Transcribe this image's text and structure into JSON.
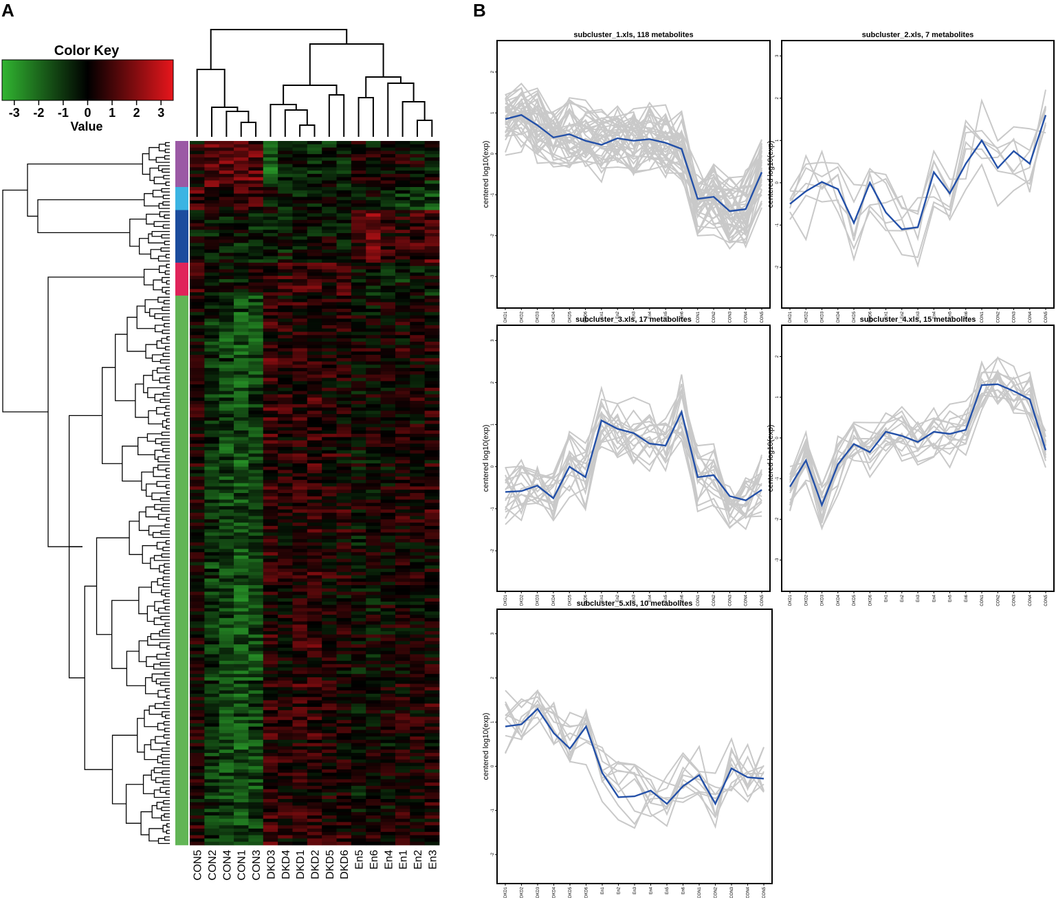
{
  "panel_labels": {
    "a": "A",
    "b": "B"
  },
  "chart_data": [
    {
      "type": "heatmap",
      "panel": "A",
      "color_key": {
        "title": "Color Key",
        "label": "Value",
        "ticks": [
          "-3",
          "-2",
          "-1",
          "0",
          "1",
          "2",
          "3"
        ],
        "range": [
          -3.5,
          3.5
        ],
        "low_color": "#31b531",
        "mid_color": "#000000",
        "high_color": "#e8161c"
      },
      "columns": [
        "CON5",
        "CON2",
        "CON4",
        "CON1",
        "CON3",
        "DKD3",
        "DKD4",
        "DKD1",
        "DKD2",
        "DKD5",
        "DKD6",
        "En5",
        "En6",
        "En4",
        "En1",
        "En2",
        "En3"
      ],
      "row_clusters": [
        {
          "color": "#9b59a5",
          "rows": 14
        },
        {
          "color": "#3bb4e3",
          "rows": 7
        },
        {
          "color": "#1c4c9e",
          "rows": 16
        },
        {
          "color": "#e0245a",
          "rows": 10
        },
        {
          "color": "#62b556",
          "rows": 167
        }
      ],
      "cluster_means": [
        [
          0.4,
          1.3,
          1.3,
          1.2,
          1.3,
          -1.8,
          -0.6,
          -0.9,
          -0.6,
          -0.4,
          -0.7,
          0.3,
          0.0,
          0.2,
          0.2,
          -0.2,
          -0.4
        ],
        [
          1.1,
          0.6,
          0.4,
          0.8,
          0.9,
          -0.3,
          -0.4,
          -0.6,
          -0.3,
          -0.4,
          -0.2,
          -0.3,
          -0.1,
          -1.0,
          -0.9,
          -1.2,
          -1.3
        ],
        [
          -0.2,
          -0.5,
          -0.5,
          -0.6,
          -0.8,
          -0.6,
          -0.5,
          -0.3,
          -0.5,
          -0.2,
          -0.4,
          0.3,
          1.6,
          0.6,
          0.4,
          0.8,
          0.9
        ],
        [
          0.5,
          -0.3,
          -0.2,
          -0.3,
          -0.1,
          0.6,
          0.6,
          0.8,
          0.9,
          0.6,
          1.1,
          -0.3,
          -0.3,
          -0.4,
          -0.3,
          -0.3,
          -0.4
        ],
        [
          0.2,
          -0.9,
          -1.3,
          -1.5,
          -1.3,
          0.7,
          0.4,
          0.6,
          0.7,
          0.4,
          0.3,
          -0.1,
          0.0,
          0.1,
          0.3,
          0.3,
          0.4
        ]
      ]
    },
    {
      "type": "line",
      "panel": "B",
      "title": "subcluster_1.xls, 118 metabolites",
      "ylabel": "centered log10(exp)",
      "x": [
        "DKD1",
        "DKD2",
        "DKD3",
        "DKD4",
        "DKD5",
        "DKD6",
        "En1",
        "En2",
        "En3",
        "En4",
        "En5",
        "En6",
        "CON1",
        "CON2",
        "CON3",
        "CON4",
        "CON5"
      ],
      "yticks": [
        "2",
        "1",
        "0",
        "-1",
        "-2",
        "-3"
      ],
      "ylim": [
        -3.6,
        2.6
      ],
      "mean": [
        0.85,
        0.95,
        0.7,
        0.4,
        0.48,
        0.32,
        0.22,
        0.38,
        0.32,
        0.36,
        0.27,
        0.12,
        -1.1,
        -1.05,
        -1.4,
        -1.35,
        -0.45
      ],
      "spread": 0.5,
      "n_lines": 40
    },
    {
      "type": "line",
      "panel": "B",
      "title": "subcluster_2.xls, 7 metabolites",
      "ylabel": "centered log10(exp)",
      "x": [
        "DKD1",
        "DKD2",
        "DKD3",
        "DKD4",
        "DKD5",
        "DKD6",
        "En1",
        "En2",
        "En3",
        "En4",
        "En5",
        "En6",
        "CON1",
        "CON2",
        "CON3",
        "CON4",
        "CON5"
      ],
      "yticks": [
        "3",
        "2",
        "1",
        "0",
        "-1",
        "-2"
      ],
      "ylim": [
        -2.8,
        3.2
      ],
      "mean": [
        -0.5,
        -0.2,
        0.02,
        -0.15,
        -0.95,
        0.0,
        -0.7,
        -1.1,
        -1.05,
        0.25,
        -0.25,
        0.45,
        1.0,
        0.35,
        0.75,
        0.45,
        1.6
      ],
      "spread": 0.6,
      "n_lines": 7
    },
    {
      "type": "line",
      "panel": "B",
      "title": "subcluster_3.xls, 17 metabolites",
      "ylabel": "centered log10(exp)",
      "x": [
        "DKD1",
        "DKD2",
        "DKD3",
        "DKD4",
        "DKD5",
        "DKD6",
        "En1",
        "En2",
        "En3",
        "En4",
        "En5",
        "En6",
        "CON1",
        "CON2",
        "CON3",
        "CON4",
        "CON5"
      ],
      "yticks": [
        "3",
        "2",
        "1",
        "0",
        "-1",
        "-2"
      ],
      "ylim": [
        -2.8,
        3.2
      ],
      "mean": [
        -0.6,
        -0.58,
        -0.45,
        -0.75,
        0.0,
        -0.25,
        1.1,
        0.9,
        0.8,
        0.55,
        0.5,
        1.3,
        -0.25,
        -0.2,
        -0.7,
        -0.8,
        -0.55
      ],
      "spread": 0.55,
      "n_lines": 17
    },
    {
      "type": "line",
      "panel": "B",
      "title": "subcluster_4.xls, 15 metabolites",
      "ylabel": "centered log10(exp)",
      "x": [
        "DKD1",
        "DKD2",
        "DKD3",
        "DKD4",
        "DKD5",
        "DKD6",
        "En1",
        "En2",
        "En3",
        "En4",
        "En5",
        "En6",
        "CON1",
        "CON2",
        "CON3",
        "CON4",
        "CON5"
      ],
      "yticks": [
        "2",
        "1",
        "0",
        "-1",
        "-2",
        "-3"
      ],
      "ylim": [
        -3.6,
        2.6
      ],
      "mean": [
        -1.2,
        -0.55,
        -1.65,
        -0.65,
        -0.15,
        -0.35,
        0.15,
        0.05,
        -0.1,
        0.15,
        0.1,
        0.2,
        1.3,
        1.32,
        1.15,
        0.95,
        -0.3
      ],
      "spread": 0.45,
      "n_lines": 15
    },
    {
      "type": "line",
      "panel": "B",
      "title": "subcluster_5.xls, 10 metabolites",
      "ylabel": "centered log10(exp)",
      "x": [
        "DKD1",
        "DKD2",
        "DKD3",
        "DKD4",
        "DKD5",
        "DKD6",
        "En1",
        "En2",
        "En3",
        "En4",
        "En5",
        "En6",
        "CON1",
        "CON2",
        "CON3",
        "CON4",
        "CON5"
      ],
      "yticks": [
        "3",
        "2",
        "1",
        "0",
        "-1",
        "-2"
      ],
      "ylim": [
        -2.5,
        3.4
      ],
      "mean": [
        0.9,
        0.95,
        1.3,
        0.75,
        0.4,
        0.9,
        -0.15,
        -0.7,
        -0.68,
        -0.55,
        -0.85,
        -0.45,
        -0.2,
        -0.85,
        -0.05,
        -0.25,
        -0.28
      ],
      "spread": 0.5,
      "n_lines": 10
    }
  ]
}
